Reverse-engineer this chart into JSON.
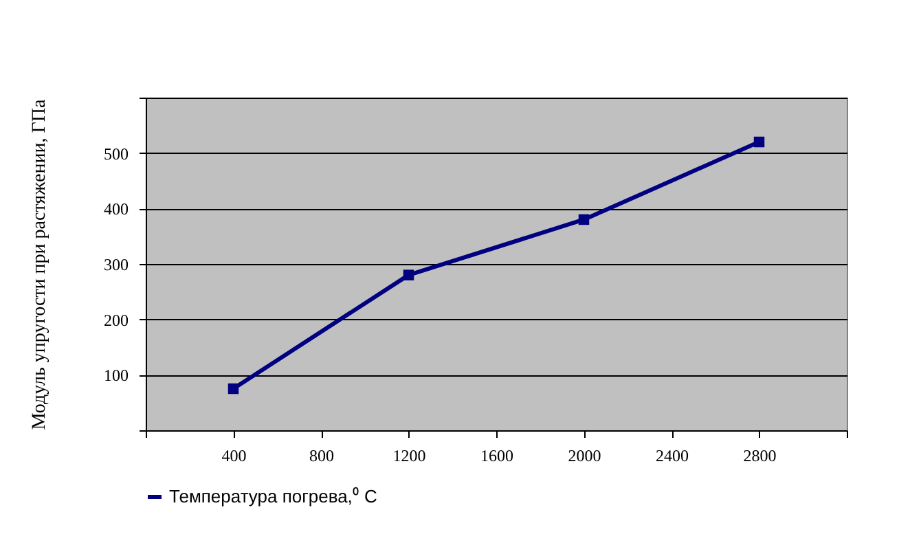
{
  "chart_data": {
    "type": "line",
    "ylabel": "Модуль упругости при растяжении, ГПа",
    "x": [
      400,
      1200,
      2000,
      2800
    ],
    "series": [
      {
        "name": "Температура погрева,⁰ С",
        "color": "#000080",
        "values": [
          75,
          280,
          380,
          520
        ]
      }
    ],
    "xlim": [
      0,
      3200
    ],
    "xticks": [
      {
        "value": 0,
        "label": null
      },
      400,
      800,
      1200,
      1600,
      2000,
      2400,
      2800,
      {
        "value": 3200,
        "label": null
      }
    ],
    "ylim": [
      0,
      600
    ],
    "yticks": [
      {
        "value": 0,
        "label": null
      },
      100,
      200,
      300,
      400,
      500,
      {
        "value": 600,
        "label": null
      }
    ],
    "grid": "y",
    "legend": "bottom",
    "marker": "square",
    "line_style": "solid"
  }
}
